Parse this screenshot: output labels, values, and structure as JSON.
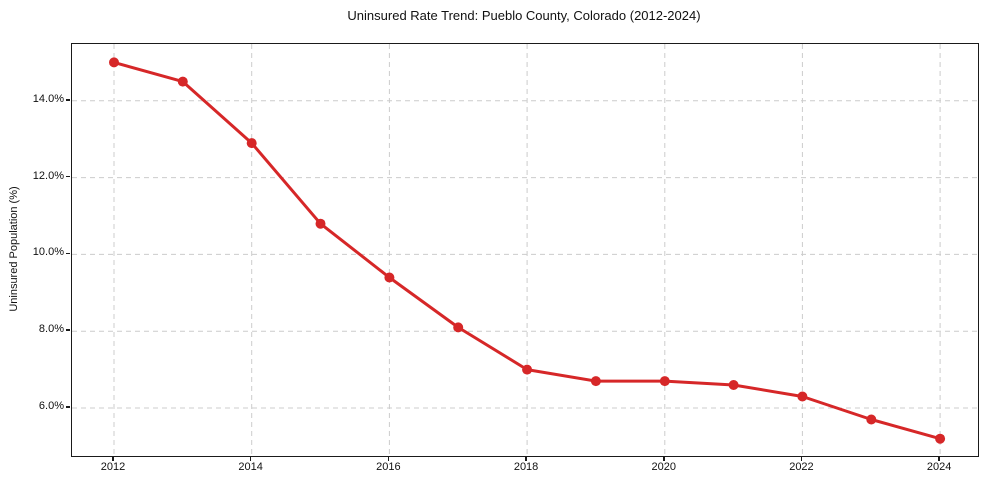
{
  "chart_data": {
    "type": "line",
    "title": "Uninsured Rate Trend: Pueblo County, Colorado (2012-2024)",
    "xlabel": "",
    "ylabel": "Uninsured Population (%)",
    "series_name": "Uninsured rate",
    "x": [
      2012,
      2013,
      2014,
      2015,
      2016,
      2017,
      2018,
      2019,
      2020,
      2021,
      2022,
      2023,
      2024
    ],
    "values": [
      15.0,
      14.5,
      12.9,
      10.8,
      9.4,
      8.1,
      7.0,
      6.7,
      6.7,
      6.6,
      6.3,
      5.7,
      5.2
    ],
    "xlim": [
      2011.39,
      2024.55
    ],
    "ylim": [
      4.75,
      15.48
    ],
    "x_ticks": [
      2012,
      2014,
      2016,
      2018,
      2020,
      2022,
      2024
    ],
    "x_tick_labels": [
      "2012",
      "2014",
      "2016",
      "2018",
      "2020",
      "2022",
      "2024"
    ],
    "y_ticks": [
      6,
      8,
      10,
      12,
      14
    ],
    "y_tick_labels": [
      "6.0%",
      "8.0%",
      "10.0%",
      "12.0%",
      "14.0%"
    ],
    "grid": true,
    "grid_style": "dashed",
    "legend": "none",
    "line_color": "#d62728",
    "marker": "circle",
    "marker_color": "#d62728",
    "grid_color": "#cccccc",
    "spine_color": "#1a1a1a",
    "text_color": "#111111",
    "background": "#ffffff"
  }
}
